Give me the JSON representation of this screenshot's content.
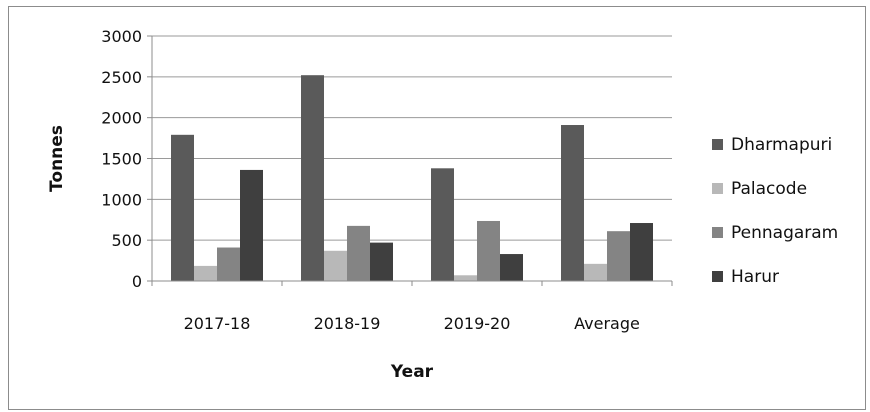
{
  "chart_data": {
    "type": "bar",
    "categories": [
      "2017-18",
      "2018-19",
      "2019-20",
      "Average"
    ],
    "series": [
      {
        "name": "Dharmapuri",
        "values": [
          1790,
          2520,
          1380,
          1910
        ],
        "color": "#5a5a5a"
      },
      {
        "name": "Palacode",
        "values": [
          185,
          370,
          70,
          210
        ],
        "color": "#b8b8b8"
      },
      {
        "name": "Pennagaram",
        "values": [
          410,
          675,
          735,
          610
        ],
        "color": "#848484"
      },
      {
        "name": "Harur",
        "values": [
          1360,
          470,
          330,
          710
        ],
        "color": "#3f3f3f"
      }
    ],
    "xlabel": "Year",
    "ylabel": "Tonnes",
    "ylim": [
      0,
      3000
    ],
    "yticks": [
      0,
      500,
      1000,
      1500,
      2000,
      2500,
      3000
    ],
    "ytick_labels": [
      "0",
      "500",
      "1000",
      "1500",
      "2000",
      "2500",
      "3000"
    ],
    "grid": true,
    "legend_position": "right"
  }
}
